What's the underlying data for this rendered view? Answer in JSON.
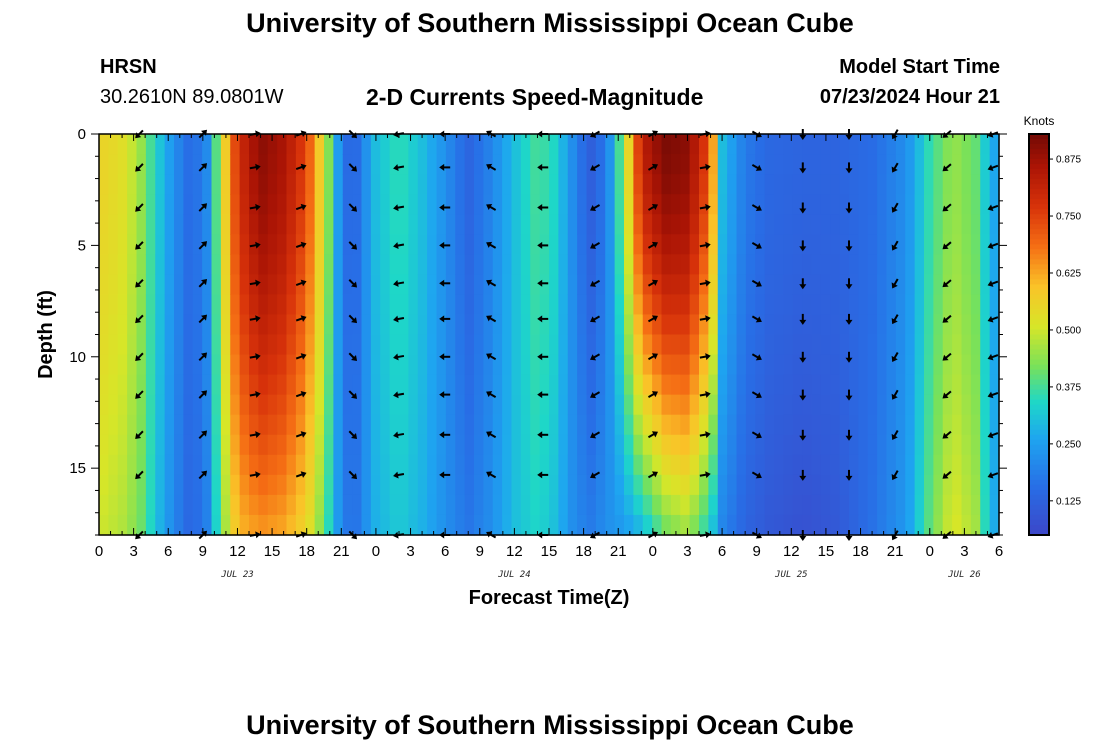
{
  "header": {
    "title_top": "University of Southern Mississippi Ocean Cube",
    "station": "HRSN",
    "coords": "30.2610N  89.0801W",
    "subtitle": "2-D Currents Speed-Magnitude",
    "model_label": "Model Start Time",
    "model_time": "07/23/2024 Hour 21",
    "title_bottom": "University of Southern Mississippi Ocean Cube"
  },
  "chart_data": {
    "type": "heatmap",
    "title": "2-D Currents Speed-Magnitude",
    "xlabel": "Forecast Time(Z)",
    "ylabel": "Depth (ft)",
    "x_range_hours": [
      0,
      78
    ],
    "x_ticks_hours": [
      0,
      3,
      6,
      9,
      12,
      15,
      18,
      21,
      24,
      27,
      30,
      33,
      36,
      39,
      42,
      45,
      48,
      51,
      54,
      57,
      60,
      63,
      66,
      69,
      72,
      75,
      78
    ],
    "x_tick_labels": [
      "0",
      "3",
      "6",
      "9",
      "12",
      "15",
      "18",
      "21",
      "0",
      "3",
      "6",
      "9",
      "12",
      "15",
      "18",
      "21",
      "0",
      "3",
      "6",
      "9",
      "12",
      "15",
      "18",
      "21",
      "0",
      "3",
      "6"
    ],
    "date_labels": [
      {
        "text": "JUL 23",
        "hour": 12
      },
      {
        "text": "JUL 24",
        "hour": 36
      },
      {
        "text": "JUL 25",
        "hour": 60
      },
      {
        "text": "JUL 26",
        "hour": 75
      }
    ],
    "y_range_ft": [
      0,
      18
    ],
    "y_ticks_ft": [
      0,
      5,
      10,
      15
    ],
    "colorbar": {
      "title": "Knots",
      "min": 0.05,
      "max": 0.93,
      "ticks": [
        "0.125",
        "0.250",
        "0.375",
        "0.500",
        "0.625",
        "0.750",
        "0.875"
      ],
      "tick_values": [
        0.125,
        0.25,
        0.375,
        0.5,
        0.625,
        0.75,
        0.875
      ]
    },
    "speed_profile_knots": [
      {
        "hour": 0,
        "surface": 0.56,
        "bottom": 0.5
      },
      {
        "hour": 2,
        "surface": 0.53,
        "bottom": 0.47
      },
      {
        "hour": 3.5,
        "surface": 0.46,
        "bottom": 0.42
      },
      {
        "hour": 5,
        "surface": 0.33,
        "bottom": 0.3
      },
      {
        "hour": 6.5,
        "surface": 0.22,
        "bottom": 0.2
      },
      {
        "hour": 8,
        "surface": 0.14,
        "bottom": 0.13
      },
      {
        "hour": 9.5,
        "surface": 0.22,
        "bottom": 0.2
      },
      {
        "hour": 10.5,
        "surface": 0.48,
        "bottom": 0.4
      },
      {
        "hour": 12,
        "surface": 0.78,
        "bottom": 0.6
      },
      {
        "hour": 14,
        "surface": 0.9,
        "bottom": 0.64
      },
      {
        "hour": 16,
        "surface": 0.86,
        "bottom": 0.62
      },
      {
        "hour": 18,
        "surface": 0.74,
        "bottom": 0.55
      },
      {
        "hour": 19.5,
        "surface": 0.52,
        "bottom": 0.4
      },
      {
        "hour": 21,
        "surface": 0.18,
        "bottom": 0.2
      },
      {
        "hour": 22,
        "surface": 0.12,
        "bottom": 0.15
      },
      {
        "hour": 24,
        "surface": 0.3,
        "bottom": 0.28
      },
      {
        "hour": 26,
        "surface": 0.36,
        "bottom": 0.32
      },
      {
        "hour": 28,
        "surface": 0.3,
        "bottom": 0.28
      },
      {
        "hour": 30,
        "surface": 0.22,
        "bottom": 0.22
      },
      {
        "hour": 32,
        "surface": 0.13,
        "bottom": 0.17
      },
      {
        "hour": 34,
        "surface": 0.2,
        "bottom": 0.22
      },
      {
        "hour": 36,
        "surface": 0.3,
        "bottom": 0.3
      },
      {
        "hour": 38,
        "surface": 0.38,
        "bottom": 0.34
      },
      {
        "hour": 39.5,
        "surface": 0.34,
        "bottom": 0.3
      },
      {
        "hour": 41,
        "surface": 0.22,
        "bottom": 0.22
      },
      {
        "hour": 42.5,
        "surface": 0.11,
        "bottom": 0.18
      },
      {
        "hour": 44,
        "surface": 0.18,
        "bottom": 0.22
      },
      {
        "hour": 45.5,
        "surface": 0.45,
        "bottom": 0.24
      },
      {
        "hour": 47,
        "surface": 0.82,
        "bottom": 0.28
      },
      {
        "hour": 49,
        "surface": 0.92,
        "bottom": 0.4
      },
      {
        "hour": 51,
        "surface": 0.9,
        "bottom": 0.45
      },
      {
        "hour": 53,
        "surface": 0.72,
        "bottom": 0.32
      },
      {
        "hour": 54,
        "surface": 0.3,
        "bottom": 0.2
      },
      {
        "hour": 56,
        "surface": 0.18,
        "bottom": 0.13
      },
      {
        "hour": 58,
        "surface": 0.14,
        "bottom": 0.1
      },
      {
        "hour": 61,
        "surface": 0.13,
        "bottom": 0.08
      },
      {
        "hour": 64,
        "surface": 0.13,
        "bottom": 0.1
      },
      {
        "hour": 67,
        "surface": 0.15,
        "bottom": 0.16
      },
      {
        "hour": 70,
        "surface": 0.22,
        "bottom": 0.24
      },
      {
        "hour": 72,
        "surface": 0.36,
        "bottom": 0.4
      },
      {
        "hour": 74,
        "surface": 0.45,
        "bottom": 0.52
      },
      {
        "hour": 76,
        "surface": 0.4,
        "bottom": 0.46
      },
      {
        "hour": 77,
        "surface": 0.3,
        "bottom": 0.32
      },
      {
        "hour": 78,
        "surface": 0.24,
        "bottom": 0.24
      }
    ],
    "arrow_depths_ft": [
      0,
      1.5,
      3.3,
      5,
      6.7,
      8.3,
      10,
      11.7,
      13.5,
      15.3,
      18
    ],
    "arrow_columns": [
      {
        "hour": 3.5,
        "dir_deg": 225
      },
      {
        "hour": 9,
        "dir_deg": 45
      },
      {
        "hour": 13.5,
        "dir_deg": 80
      },
      {
        "hour": 17.5,
        "dir_deg": 70
      },
      {
        "hour": 22,
        "dir_deg": 135
      },
      {
        "hour": 26,
        "dir_deg": 260
      },
      {
        "hour": 30,
        "dir_deg": 270
      },
      {
        "hour": 34,
        "dir_deg": 300
      },
      {
        "hour": 38.5,
        "dir_deg": 270
      },
      {
        "hour": 43,
        "dir_deg": 240
      },
      {
        "hour": 48,
        "dir_deg": 60
      },
      {
        "hour": 52.5,
        "dir_deg": 80
      },
      {
        "hour": 57,
        "dir_deg": 120
      },
      {
        "hour": 61,
        "dir_deg": 180
      },
      {
        "hour": 65,
        "dir_deg": 180
      },
      {
        "hour": 69,
        "dir_deg": 210
      },
      {
        "hour": 73.5,
        "dir_deg": 230
      },
      {
        "hour": 77.5,
        "dir_deg": 250
      }
    ]
  }
}
